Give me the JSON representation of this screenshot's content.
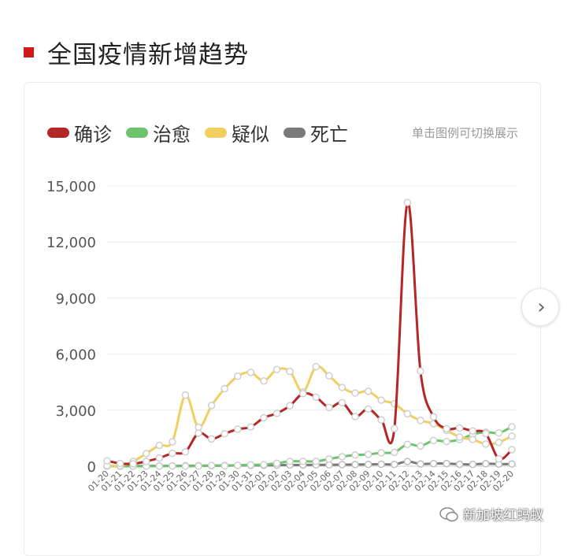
{
  "header": {
    "title": "全国疫情新增趋势"
  },
  "legend": {
    "items": [
      {
        "label": "确诊",
        "color": "#b42727"
      },
      {
        "label": "治愈",
        "color": "#6cc46c"
      },
      {
        "label": "疑似",
        "color": "#f0cf5f"
      },
      {
        "label": "死亡",
        "color": "#7a7a7a"
      }
    ],
    "hint": "单击图例可切换展示"
  },
  "nav": {
    "next_icon": "chevron-right-icon"
  },
  "watermark": {
    "text": "新加坡红蚂蚁",
    "icon": "wechat-bubble-icon"
  },
  "chart_data": {
    "type": "line",
    "title": "",
    "xlabel": "",
    "ylabel": "",
    "ylim": [
      0,
      15000
    ],
    "yticks": [
      "0",
      "3,000",
      "6,000",
      "9,000",
      "12,000",
      "15,000"
    ],
    "ytick_values": [
      0,
      3000,
      6000,
      9000,
      12000,
      15000
    ],
    "grid": true,
    "categories": [
      "01-20",
      "01-21",
      "01-22",
      "01-23",
      "01-24",
      "01-25",
      "01-26",
      "01-27",
      "01-28",
      "01-29",
      "01-30",
      "01-31",
      "02-01",
      "02-02",
      "02-03",
      "02-04",
      "02-05",
      "02-06",
      "02-07",
      "02-08",
      "02-09",
      "02-10",
      "02-11",
      "02-12",
      "02-13",
      "02-14",
      "02-15",
      "02-16",
      "02-17",
      "02-18",
      "02-19",
      "02-20"
    ],
    "series": [
      {
        "name": "确诊",
        "color": "#b42727",
        "values": [
          291,
          149,
          131,
          259,
          444,
          688,
          769,
          1771,
          1459,
          1737,
          1982,
          2102,
          2590,
          2829,
          3235,
          3887,
          3694,
          3143,
          3399,
          2656,
          3062,
          2478,
          2015,
          14108,
          5090,
          2641,
          2009,
          2048,
          1886,
          1749,
          394,
          889
        ]
      },
      {
        "name": "治愈",
        "color": "#6cc46c",
        "values": [
          0,
          0,
          0,
          6,
          3,
          11,
          2,
          9,
          43,
          21,
          47,
          72,
          85,
          157,
          262,
          261,
          261,
          387,
          510,
          600,
          632,
          716,
          744,
          1171,
          1081,
          1373,
          1323,
          1425,
          1701,
          1824,
          1779,
          2109
        ]
      },
      {
        "name": "疑似",
        "color": "#f0cf5f",
        "values": [
          27,
          26,
          257,
          680,
          1118,
          1309,
          3806,
          2077,
          3248,
          4148,
          4812,
          5019,
          4562,
          5173,
          5072,
          3971,
          5328,
          4833,
          4214,
          3916,
          4008,
          3536,
          3342,
          2807,
          2450,
          2277,
          1918,
          1563,
          1432,
          1185,
          1277,
          1614
        ]
      },
      {
        "name": "死亡",
        "color": "#7a7a7a",
        "values": [
          3,
          0,
          8,
          16,
          15,
          15,
          24,
          26,
          26,
          38,
          43,
          46,
          45,
          57,
          64,
          65,
          73,
          73,
          86,
          89,
          97,
          108,
          97,
          254,
          121,
          143,
          142,
          105,
          98,
          136,
          114,
          118
        ]
      }
    ]
  }
}
